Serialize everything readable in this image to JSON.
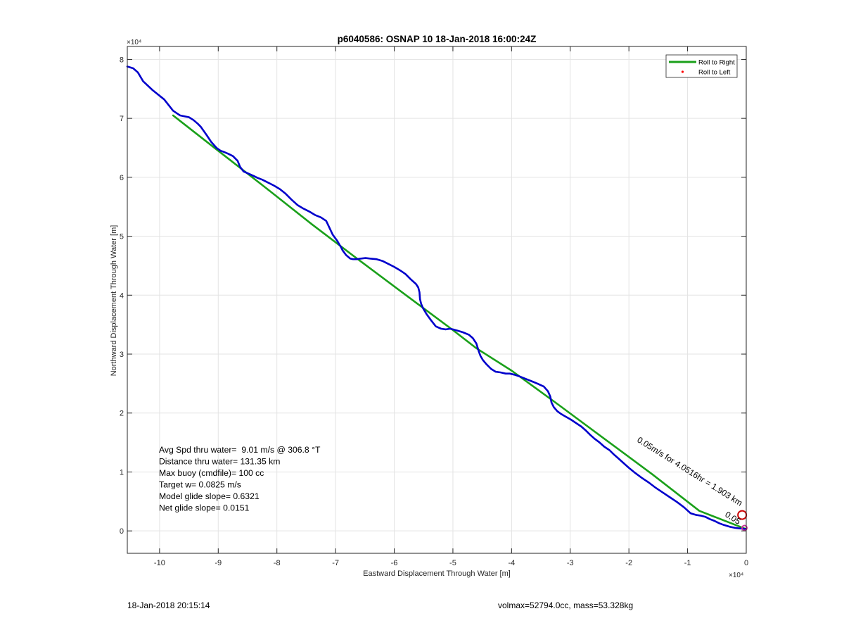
{
  "chart_data": {
    "type": "line",
    "title": "p6040586: OSNAP 10 18-Jan-2018 16:00:24Z",
    "xlabel": "Eastward Displacement Through Water [m]",
    "ylabel": "Northward Displacement Through Water [m]",
    "x_exponent_label": "×10⁴",
    "y_exponent_label": "×10⁴",
    "xlim": [
      -105500,
      0
    ],
    "ylim": [
      -3800,
      82200
    ],
    "xticks": [
      -100000,
      -90000,
      -80000,
      -70000,
      -60000,
      -50000,
      -40000,
      -30000,
      -20000,
      -10000,
      0
    ],
    "xtick_labels": [
      "-10",
      "-9",
      "-8",
      "-7",
      "-6",
      "-5",
      "-4",
      "-3",
      "-2",
      "-1",
      "0"
    ],
    "yticks": [
      0,
      10000,
      20000,
      30000,
      40000,
      50000,
      60000,
      70000,
      80000
    ],
    "ytick_labels": [
      "0",
      "1",
      "2",
      "3",
      "4",
      "5",
      "6",
      "7",
      "8"
    ],
    "grid": true,
    "legend_position": "top-right",
    "legend": [
      {
        "label": "Roll to Right",
        "color": "#1aa01a",
        "style": "line"
      },
      {
        "label": "Roll to Left",
        "color": "#ff0000",
        "style": "point"
      }
    ],
    "series": [
      {
        "color": "#1aa01a",
        "style": "line",
        "x": [
          -97700,
          -90000,
          -82000,
          -74000,
          -66200,
          -58000,
          -50300,
          -46000,
          -40000,
          -32000,
          -24000,
          -16000,
          -8000,
          0
        ],
        "y": [
          70500,
          64500,
          58300,
          52000,
          46100,
          40000,
          34300,
          31000,
          27200,
          21400,
          15500,
          9600,
          3400,
          300
        ]
      },
      {
        "color": "#0000cc",
        "style": "line",
        "x": [
          -105500,
          -104500,
          -103700,
          -102800,
          -101200,
          -99200,
          -97700,
          -96500,
          -95000,
          -94200,
          -93500,
          -93000,
          -92000,
          -91200,
          -90300,
          -89600,
          -89000,
          -88300,
          -87500,
          -86700,
          -86300,
          -85700,
          -84800,
          -83900,
          -83300,
          -82500,
          -81500,
          -80500,
          -79500,
          -78500,
          -77500,
          -76500,
          -75500,
          -74500,
          -73500,
          -72500,
          -71600,
          -70500,
          -69700,
          -69300,
          -69000,
          -68800,
          -68200,
          -67500,
          -67000,
          -66400,
          -65800,
          -64900,
          -64000,
          -63000,
          -62000,
          -61000,
          -60000,
          -59000,
          -58100,
          -57200,
          -56300,
          -55900,
          -55700,
          -55600,
          -55400,
          -55100,
          -54500,
          -53700,
          -52900,
          -52000,
          -51200,
          -50500,
          -50000,
          -49300,
          -48300,
          -47300,
          -46600,
          -46000,
          -45600,
          -45300,
          -44900,
          -44300,
          -43500,
          -42700,
          -41900,
          -41000,
          -40300,
          -39500,
          -38600,
          -37600,
          -36600,
          -35600,
          -34500,
          -33800,
          -33400,
          -33200,
          -32800,
          -32200,
          -31500,
          -30800,
          -29900,
          -29000,
          -28100,
          -27300,
          -26600,
          -25800,
          -25000,
          -24200,
          -23300,
          -22600,
          -21900,
          -21000,
          -20000,
          -18900,
          -17800,
          -16600,
          -15400,
          -14200,
          -13000,
          -11800,
          -10600,
          -9500,
          -8500,
          -7800,
          -7000,
          -6200,
          -5400,
          -4600,
          -3800,
          -2800,
          -1800,
          -900,
          0
        ],
        "y": [
          78800,
          78500,
          77800,
          76300,
          74800,
          73200,
          71300,
          70500,
          70200,
          69700,
          69100,
          68600,
          67200,
          66000,
          65000,
          64500,
          64300,
          64000,
          63600,
          62800,
          61800,
          61000,
          60600,
          60200,
          59900,
          59600,
          59100,
          58600,
          58000,
          57200,
          56200,
          55300,
          54700,
          54200,
          53600,
          53200,
          52600,
          50300,
          49200,
          48500,
          48000,
          47600,
          46800,
          46200,
          46100,
          46100,
          46200,
          46300,
          46200,
          46100,
          45800,
          45300,
          44800,
          44200,
          43600,
          42700,
          41900,
          41300,
          40500,
          39300,
          38500,
          37800,
          36800,
          35700,
          34700,
          34300,
          34200,
          34300,
          34200,
          34000,
          33700,
          33300,
          32700,
          31800,
          30500,
          29700,
          29000,
          28300,
          27500,
          27000,
          26900,
          26700,
          26700,
          26500,
          26200,
          25800,
          25400,
          25000,
          24500,
          23700,
          22800,
          21800,
          21000,
          20300,
          19800,
          19400,
          18900,
          18300,
          17700,
          17000,
          16300,
          15600,
          15000,
          14300,
          13700,
          13000,
          12400,
          11600,
          10700,
          9800,
          9000,
          8200,
          7300,
          6500,
          5700,
          4900,
          4000,
          3000,
          2700,
          2600,
          2400,
          2000,
          1700,
          1300,
          1000,
          700,
          500,
          400,
          300
        ]
      }
    ],
    "markers": [
      {
        "x": -700,
        "y": 2700,
        "shape": "circle",
        "color": "#cc0000"
      },
      {
        "x": -300,
        "y": 500,
        "shape": "circle",
        "color": "#cc3399"
      }
    ],
    "annotations": {
      "segment_label": "0.05m/s for 4.0516hr = 1.903 km",
      "overlap_text": "0.05",
      "stats": [
        "Avg Spd thru water=  9.01 m/s @ 306.8 °T",
        "Distance thru water= 131.35 km",
        "Max buoy (cmdfile)= 100 cc",
        "Target w= 0.0825 m/s",
        "Model glide slope= 0.6321",
        "Net glide slope= 0.0151"
      ]
    }
  },
  "footer": {
    "left": "18-Jan-2018 20:15:14",
    "right": "volmax=52794.0cc, mass=53.328kg"
  }
}
